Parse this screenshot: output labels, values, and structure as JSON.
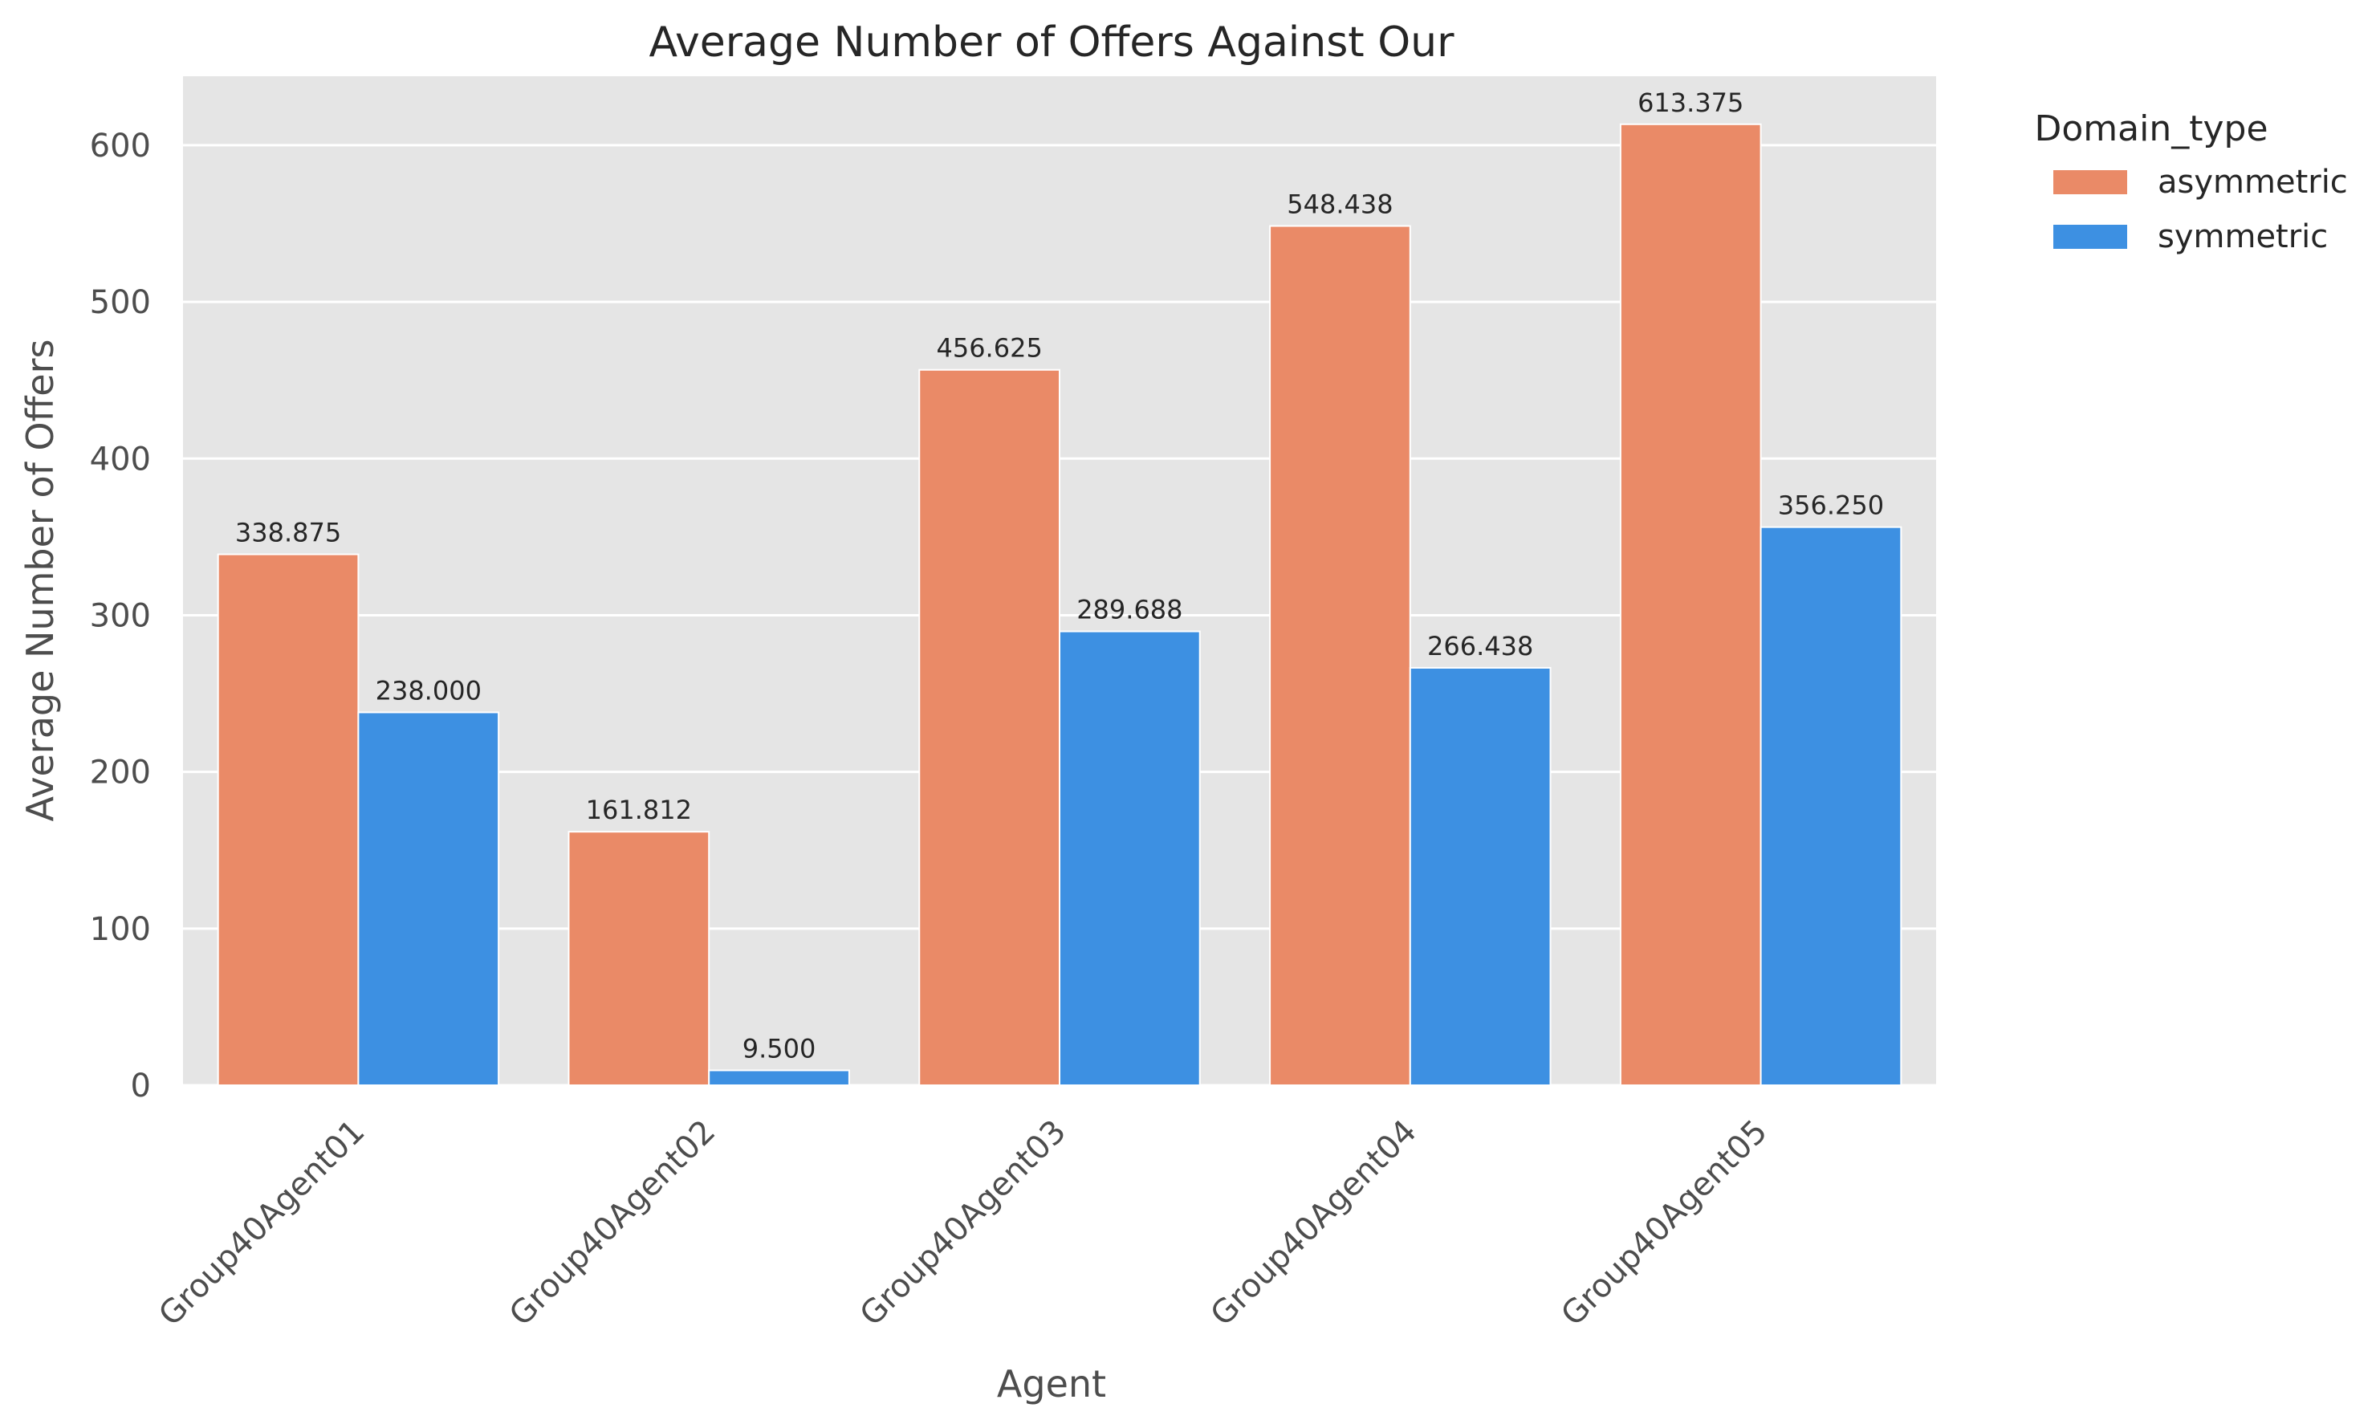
{
  "chart_data": {
    "type": "bar",
    "title": "Average Number of Offers Against Our",
    "xlabel": "Agent",
    "ylabel": "Average Number of Offers",
    "categories": [
      "Group40Agent01",
      "Group40Agent02",
      "Group40Agent03",
      "Group40Agent04",
      "Group40Agent05"
    ],
    "series": [
      {
        "name": "asymmetric",
        "color": "#ea8a67",
        "values": [
          338.875,
          161.812,
          456.625,
          548.438,
          613.375
        ],
        "labels": [
          "338.875",
          "161.812",
          "456.625",
          "548.438",
          "613.375"
        ]
      },
      {
        "name": "symmetric",
        "color": "#3d90e2",
        "values": [
          238.0,
          9.5,
          289.688,
          266.438,
          356.25
        ],
        "labels": [
          "238.000",
          "9.500",
          "289.688",
          "266.438",
          "356.250"
        ]
      }
    ],
    "ylim": [
      0,
      644
    ],
    "yticks": [
      0,
      100,
      200,
      300,
      400,
      500,
      600
    ],
    "ytick_labels": [
      "0",
      "100",
      "200",
      "300",
      "400",
      "500",
      "600"
    ],
    "grid": true,
    "background_color": "#e5e5e5",
    "legend": {
      "title": "Domain_type",
      "placement": "outside-top-right"
    },
    "x_tick_rotation": 45
  }
}
